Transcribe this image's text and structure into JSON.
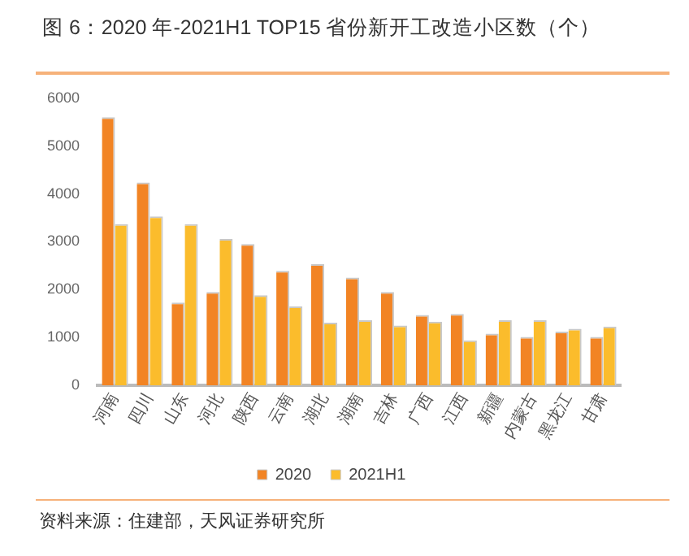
{
  "chart_data": {
    "type": "bar",
    "title": "图 6：2020 年-2021H1 TOP15 省份新开工改造小区数（个）",
    "categories": [
      "河南",
      "四川",
      "山东",
      "河北",
      "陕西",
      "云南",
      "湖北",
      "湖南",
      "吉林",
      "广西",
      "江西",
      "新疆",
      "内蒙古",
      "黑龙江",
      "甘肃"
    ],
    "series": [
      {
        "name": "2020",
        "color": "#f28424",
        "values": [
          5600,
          4240,
          1730,
          1950,
          2950,
          2390,
          2530,
          2250,
          1950,
          1470,
          1490,
          1080,
          1010,
          1120,
          1010
        ]
      },
      {
        "name": "2021H1",
        "color": "#fbbc2c",
        "values": [
          3370,
          3530,
          3370,
          3060,
          1880,
          1650,
          1310,
          1360,
          1250,
          1330,
          940,
          1360,
          1360,
          1180,
          1230
        ]
      }
    ],
    "ylim": [
      0,
      6000
    ],
    "yticks": [
      0,
      1000,
      2000,
      3000,
      4000,
      5000,
      6000
    ],
    "grid": false,
    "legend": "bottom",
    "annotations": [
      "资料来源：住建部，天风证券研究所"
    ]
  }
}
